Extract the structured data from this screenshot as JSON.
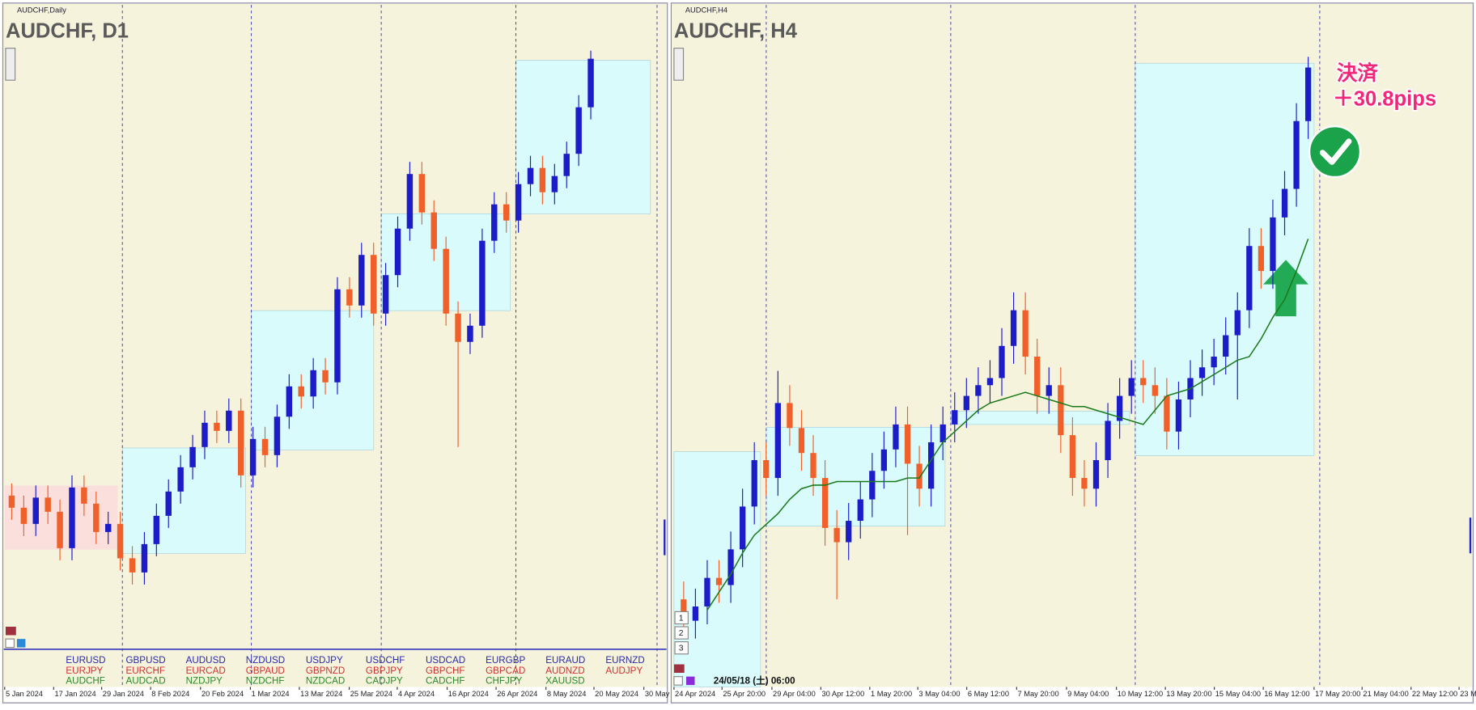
{
  "panels": [
    {
      "type": "candlestick",
      "caption": "AUDCHF,Daily",
      "title": "AUDCHF, D1",
      "ylim": [
        0.58,
        0.61
      ],
      "x_labels": [
        "5 Jan 2024",
        "17 Jan 2024",
        "29 Jan 2024",
        "8 Feb 2024",
        "20 Feb 2024",
        "1 Mar 2024",
        "13 Mar 2024",
        "25 Mar 2024",
        "4 Apr 2024",
        "16 Apr 2024",
        "26 Apr 2024",
        "8 May 2024",
        "20 May 2024",
        "30 May"
      ],
      "candles": [
        [
          0.5876,
          0.5882,
          0.5864,
          0.587
        ],
        [
          0.587,
          0.5876,
          0.5856,
          0.5862
        ],
        [
          0.5862,
          0.5881,
          0.5856,
          0.5875
        ],
        [
          0.5875,
          0.5881,
          0.5862,
          0.5868
        ],
        [
          0.5868,
          0.5874,
          0.5844,
          0.585
        ],
        [
          0.585,
          0.5886,
          0.5844,
          0.588
        ],
        [
          0.588,
          0.5886,
          0.5866,
          0.5872
        ],
        [
          0.5872,
          0.5878,
          0.5852,
          0.5858
        ],
        [
          0.5858,
          0.5868,
          0.5852,
          0.5862
        ],
        [
          0.5862,
          0.5868,
          0.5839,
          0.5845
        ],
        [
          0.5845,
          0.5851,
          0.5832,
          0.5838
        ],
        [
          0.5838,
          0.5858,
          0.5832,
          0.5852
        ],
        [
          0.5852,
          0.5872,
          0.5846,
          0.5866
        ],
        [
          0.5866,
          0.5884,
          0.586,
          0.5878
        ],
        [
          0.5878,
          0.5896,
          0.5872,
          0.589
        ],
        [
          0.589,
          0.5906,
          0.5884,
          0.59
        ],
        [
          0.59,
          0.5918,
          0.5894,
          0.5912
        ],
        [
          0.5912,
          0.5918,
          0.5902,
          0.5908
        ],
        [
          0.5908,
          0.5924,
          0.5902,
          0.5918
        ],
        [
          0.5918,
          0.5924,
          0.588,
          0.5886
        ],
        [
          0.5886,
          0.591,
          0.588,
          0.5904
        ],
        [
          0.5904,
          0.591,
          0.589,
          0.5896
        ],
        [
          0.5896,
          0.5921,
          0.589,
          0.5915
        ],
        [
          0.5915,
          0.5936,
          0.5909,
          0.593
        ],
        [
          0.593,
          0.5936,
          0.5919,
          0.5925
        ],
        [
          0.5925,
          0.5944,
          0.5919,
          0.5938
        ],
        [
          0.5938,
          0.5944,
          0.5926,
          0.5932
        ],
        [
          0.5932,
          0.5984,
          0.5926,
          0.5978
        ],
        [
          0.5978,
          0.5984,
          0.5964,
          0.597
        ],
        [
          0.597,
          0.6001,
          0.5964,
          0.5995
        ],
        [
          0.5995,
          0.6001,
          0.596,
          0.5966
        ],
        [
          0.5966,
          0.5991,
          0.596,
          0.5985
        ],
        [
          0.5985,
          0.6014,
          0.5979,
          0.6008
        ],
        [
          0.6008,
          0.6041,
          0.6002,
          0.6035
        ],
        [
          0.6035,
          0.6041,
          0.601,
          0.6016
        ],
        [
          0.6016,
          0.6022,
          0.5992,
          0.5998
        ],
        [
          0.5998,
          0.6004,
          0.596,
          0.5966
        ],
        [
          0.5966,
          0.5972,
          0.59,
          0.5952
        ],
        [
          0.5952,
          0.5966,
          0.5946,
          0.596
        ],
        [
          0.596,
          0.6008,
          0.5954,
          0.6002
        ],
        [
          0.6002,
          0.6026,
          0.5996,
          0.602
        ],
        [
          0.602,
          0.6026,
          0.6006,
          0.6012
        ],
        [
          0.6012,
          0.6036,
          0.6006,
          0.603
        ],
        [
          0.603,
          0.6044,
          0.6024,
          0.6038
        ],
        [
          0.6038,
          0.6044,
          0.602,
          0.6026
        ],
        [
          0.6026,
          0.604,
          0.602,
          0.6034
        ],
        [
          0.6034,
          0.6051,
          0.6028,
          0.6045
        ],
        [
          0.6045,
          0.6074,
          0.6039,
          0.6068
        ],
        [
          0.6068,
          0.6096,
          0.6062,
          0.6092
        ]
      ],
      "symbols": [
        [
          "EURUSD",
          "EURJPY",
          "AUDCHF"
        ],
        [
          "GBPUSD",
          "EURCHF",
          "AUDCAD"
        ],
        [
          "AUDUSD",
          "EURCAD",
          "NZDJPY"
        ],
        [
          "NZDUSD",
          "GBPAUD",
          "NZDCHF"
        ],
        [
          "USDJPY",
          "GBPNZD",
          "NZDCAD"
        ],
        [
          "USDCHF",
          "GBPJPY",
          "CADJPY"
        ],
        [
          "USDCAD",
          "GBPCHF",
          "CADCHF"
        ],
        [
          "EURGBP",
          "GBPCAD",
          "CHFJPY"
        ],
        [
          "EURAUD",
          "AUDNZD",
          "XAUUSD"
        ],
        [
          "EURNZD",
          "AUDJPY"
        ]
      ]
    },
    {
      "type": "candlestick",
      "caption": "AUDCHF,H4",
      "title": "AUDCHF, H4",
      "ylim": [
        0.593,
        0.61
      ],
      "x_labels": [
        "24 Apr 2024",
        "25 Apr 20:00",
        "29 Apr 04:00",
        "30 Apr 12:00",
        "1 May 20:00",
        "3 May 04:00",
        "6 May 12:00",
        "7 May 20:00",
        "9 May 04:00",
        "10 May 12:00",
        "13 May 20:00",
        "15 May 04:00",
        "16 May 12:00",
        "17 May 20:00",
        "21 May 04:00",
        "22 May 12:00",
        "23 M"
      ],
      "candles": [
        [
          0.5944,
          0.5949,
          0.5933,
          0.5938
        ],
        [
          0.5938,
          0.5947,
          0.5933,
          0.5942
        ],
        [
          0.5942,
          0.5955,
          0.5937,
          0.595
        ],
        [
          0.595,
          0.5955,
          0.5943,
          0.5948
        ],
        [
          0.5948,
          0.5963,
          0.5943,
          0.5958
        ],
        [
          0.5958,
          0.5975,
          0.5953,
          0.597
        ],
        [
          0.597,
          0.5988,
          0.5965,
          0.5983
        ],
        [
          0.5983,
          0.5988,
          0.5973,
          0.5978
        ],
        [
          0.5978,
          0.6008,
          0.5973,
          0.5999
        ],
        [
          0.5999,
          0.6004,
          0.5987,
          0.5992
        ],
        [
          0.5992,
          0.5997,
          0.598,
          0.5985
        ],
        [
          0.5985,
          0.599,
          0.5973,
          0.5978
        ],
        [
          0.5978,
          0.5983,
          0.5959,
          0.5964
        ],
        [
          0.5964,
          0.5969,
          0.5944,
          0.596
        ],
        [
          0.596,
          0.5971,
          0.5955,
          0.5966
        ],
        [
          0.5966,
          0.5977,
          0.5961,
          0.5972
        ],
        [
          0.5972,
          0.5985,
          0.5967,
          0.598
        ],
        [
          0.598,
          0.5991,
          0.5975,
          0.5986
        ],
        [
          0.5986,
          0.5998,
          0.5981,
          0.5993
        ],
        [
          0.5993,
          0.5998,
          0.5962,
          0.5982
        ],
        [
          0.5982,
          0.5987,
          0.597,
          0.5975
        ],
        [
          0.5975,
          0.5993,
          0.597,
          0.5988
        ],
        [
          0.5988,
          0.5998,
          0.5983,
          0.5993
        ],
        [
          0.5993,
          0.6002,
          0.5988,
          0.5997
        ],
        [
          0.5997,
          0.6006,
          0.5992,
          0.6001
        ],
        [
          0.6001,
          0.6009,
          0.5996,
          0.6004
        ],
        [
          0.6004,
          0.6011,
          0.5999,
          0.6006
        ],
        [
          0.6006,
          0.602,
          0.6001,
          0.6015
        ],
        [
          0.6015,
          0.603,
          0.601,
          0.6025
        ],
        [
          0.6025,
          0.603,
          0.6007,
          0.6012
        ],
        [
          0.6012,
          0.6017,
          0.5996,
          0.6001
        ],
        [
          0.6001,
          0.6009,
          0.5996,
          0.6004
        ],
        [
          0.6004,
          0.6009,
          0.5985,
          0.599
        ],
        [
          0.599,
          0.5995,
          0.5973,
          0.5978
        ],
        [
          0.5978,
          0.5983,
          0.597,
          0.5975
        ],
        [
          0.5975,
          0.5988,
          0.597,
          0.5983
        ],
        [
          0.5983,
          0.5999,
          0.5978,
          0.5994
        ],
        [
          0.5994,
          0.6006,
          0.5989,
          0.6001
        ],
        [
          0.6001,
          0.6011,
          0.5996,
          0.6006
        ],
        [
          0.6006,
          0.6011,
          0.5999,
          0.6004
        ],
        [
          0.6004,
          0.6009,
          0.5996,
          0.6001
        ],
        [
          0.6001,
          0.6006,
          0.5986,
          0.5991
        ],
        [
          0.5991,
          0.6005,
          0.5986,
          0.6
        ],
        [
          0.6,
          0.6011,
          0.5995,
          0.6006
        ],
        [
          0.6006,
          0.6014,
          0.6001,
          0.6009
        ],
        [
          0.6009,
          0.6017,
          0.6004,
          0.6012
        ],
        [
          0.6012,
          0.6023,
          0.6007,
          0.6018
        ],
        [
          0.6018,
          0.603,
          0.6,
          0.6025
        ],
        [
          0.6025,
          0.6048,
          0.602,
          0.6043
        ],
        [
          0.6043,
          0.6048,
          0.6031,
          0.6036
        ],
        [
          0.6036,
          0.6056,
          0.6031,
          0.6051
        ],
        [
          0.6051,
          0.6064,
          0.6046,
          0.6059
        ],
        [
          0.6059,
          0.6083,
          0.6054,
          0.6078
        ],
        [
          0.6078,
          0.6096,
          0.6073,
          0.6093
        ]
      ],
      "moving_average": [
        null,
        null,
        0.5941,
        0.5946,
        0.5951,
        0.5957,
        0.5962,
        0.5965,
        0.5968,
        0.5972,
        0.5975,
        0.5976,
        0.5976,
        0.5977,
        0.5977,
        0.5977,
        0.5977,
        0.5977,
        0.5977,
        0.5978,
        0.5978,
        0.5983,
        0.5988,
        0.5991,
        0.5994,
        0.5997,
        0.5999,
        0.6,
        0.6001,
        0.6002,
        0.6001,
        0.6,
        0.5999,
        0.5998,
        0.5998,
        0.5997,
        0.5996,
        0.5995,
        0.5994,
        0.5993,
        0.5997,
        0.6001,
        0.6002,
        0.6003,
        0.6005,
        0.6007,
        0.6009,
        0.6011,
        0.6012,
        0.6017,
        0.6023,
        0.6028,
        0.6036,
        0.6045
      ],
      "date_badge": "24/05/18 (土) 06:00",
      "buttons": [
        "1",
        "2",
        "3"
      ],
      "annotation": [
        "決済",
        "＋30.8pips"
      ]
    }
  ]
}
